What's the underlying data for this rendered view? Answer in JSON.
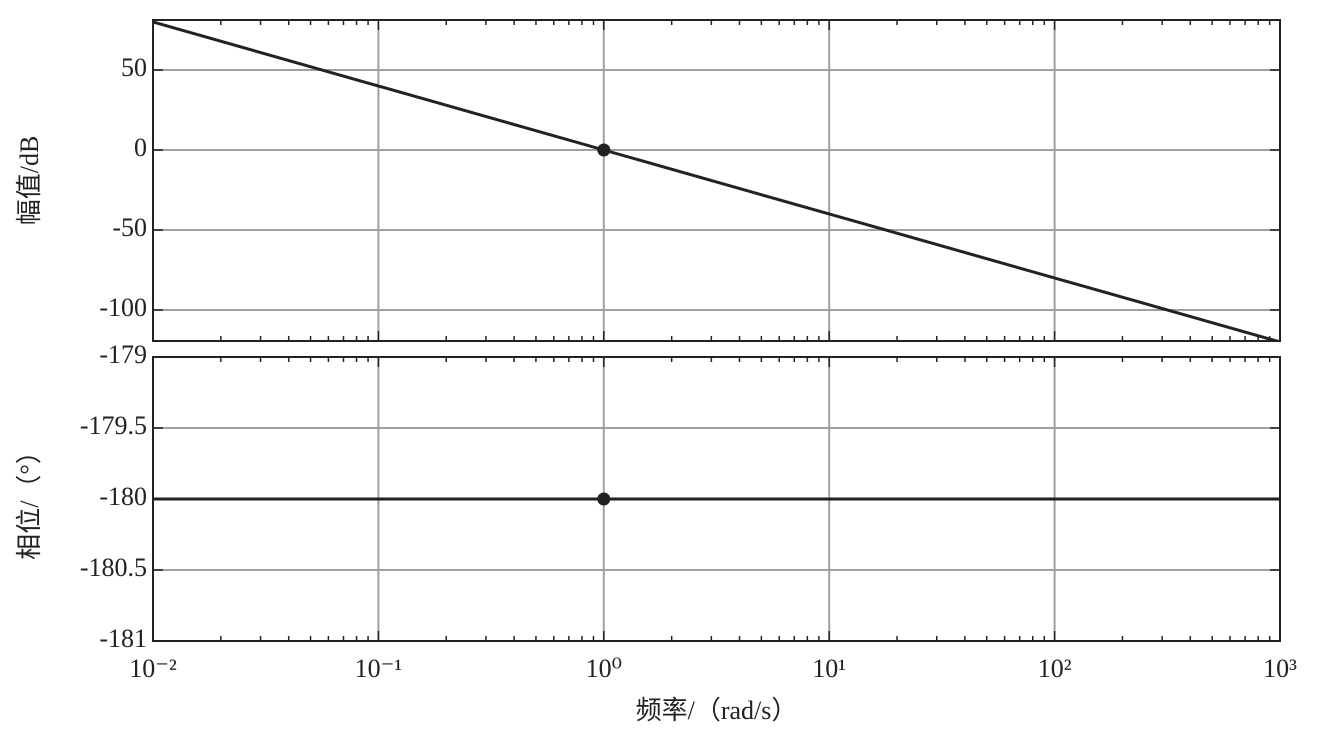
{
  "chart_data": [
    {
      "type": "line",
      "xscale": "log",
      "grid": true,
      "ylabel": "幅值/dB",
      "xlim": [
        0.01,
        1000
      ],
      "xticks": [
        0.01,
        0.1,
        1,
        10,
        100,
        1000
      ],
      "ylim": [
        -119.4,
        81.25
      ],
      "yticks": [
        -100,
        -50,
        0,
        50
      ],
      "series": [
        {
          "color": "#222222",
          "x": [
            0.01,
            1000
          ],
          "values": [
            80,
            -120
          ]
        },
        {
          "color": "#222222",
          "marker": "o",
          "x": [
            1
          ],
          "values": [
            0
          ]
        }
      ]
    },
    {
      "type": "line",
      "xscale": "log",
      "grid": true,
      "ylabel": "相位/（°）",
      "xlabel": "频率/（rad/s）",
      "xlim": [
        0.01,
        1000
      ],
      "xticks": [
        {
          "value": 0.01,
          "label": "10⁻²"
        },
        {
          "value": 0.1,
          "label": "10⁻¹"
        },
        {
          "value": 1,
          "label": "10⁰"
        },
        {
          "value": 10,
          "label": "10¹"
        },
        {
          "value": 100,
          "label": "10²"
        },
        {
          "value": 1000,
          "label": "10³"
        }
      ],
      "ylim": [
        -181,
        -179
      ],
      "yticks": [
        -181,
        -180.5,
        -180,
        -179.5,
        -179
      ],
      "series": [
        {
          "color": "#222222",
          "x": [
            0.01,
            1000
          ],
          "values": [
            -180,
            -180
          ]
        },
        {
          "color": "#222222",
          "marker": "o",
          "x": [
            1
          ],
          "values": [
            -180
          ]
        }
      ]
    }
  ]
}
